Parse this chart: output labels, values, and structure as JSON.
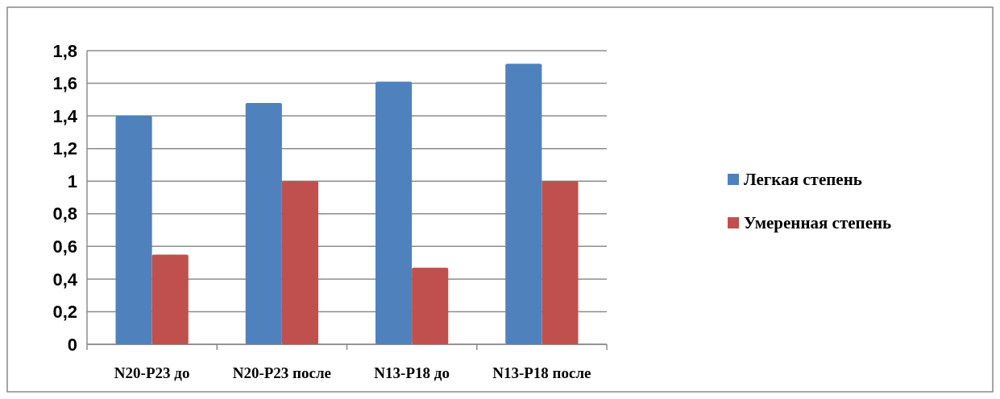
{
  "chart_data": {
    "type": "bar",
    "categories": [
      "N20-P23 до",
      "N20-P23 после",
      "N13-P18 до",
      "N13-P18 после"
    ],
    "series": [
      {
        "name": "Легкая степень",
        "color": "#4f81bd",
        "values": [
          1.4,
          1.48,
          1.61,
          1.72
        ]
      },
      {
        "name": "Умеренная степень",
        "color": "#c0504d",
        "values": [
          0.55,
          1,
          0.47,
          1
        ]
      }
    ],
    "ylim": [
      0,
      1.8
    ],
    "yticks": [
      0,
      {
        "value": 0.2,
        "label": "0,2"
      },
      {
        "value": 0.4,
        "label": "0,4"
      },
      {
        "value": 0.6,
        "label": "0,6"
      },
      {
        "value": 0.8,
        "label": "0,8"
      },
      1,
      {
        "value": 1.2,
        "label": "1,2"
      },
      {
        "value": 1.4,
        "label": "1,4"
      },
      {
        "value": 1.6,
        "label": "1,6"
      },
      {
        "value": 1.8,
        "label": "1,8"
      }
    ],
    "grid": "y",
    "legend": "right"
  }
}
